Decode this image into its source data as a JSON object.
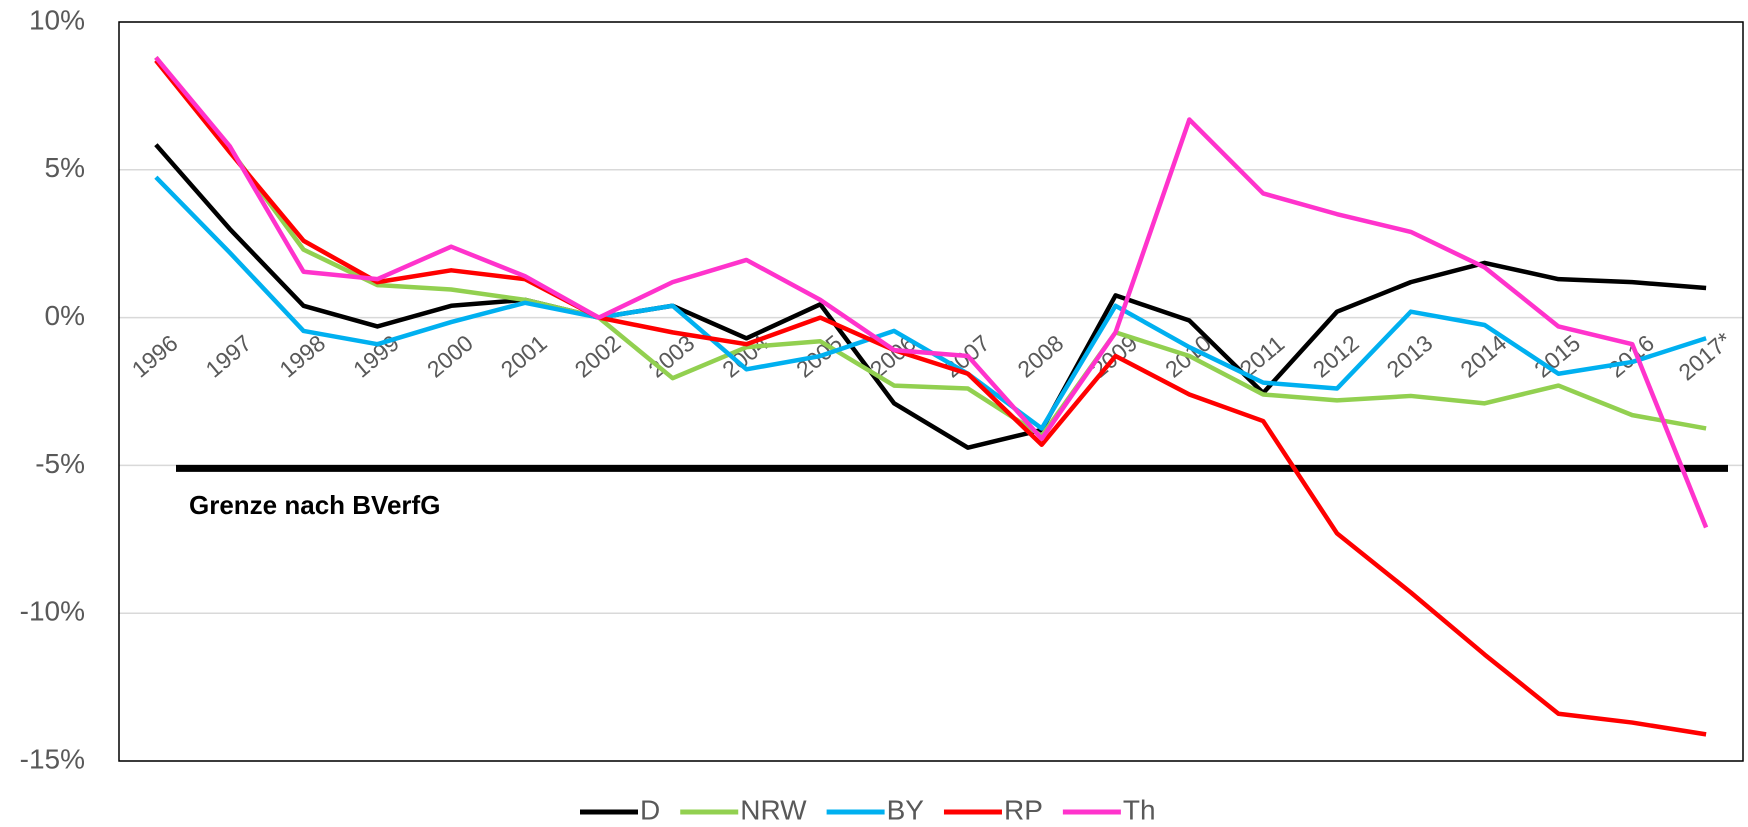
{
  "chart_data": {
    "type": "line",
    "categories": [
      "1996",
      "1997",
      "1998",
      "1999",
      "2000",
      "2001",
      "2002",
      "2003",
      "2004",
      "2005",
      "2006",
      "2007",
      "2008",
      "2009",
      "2010",
      "2011",
      "2012",
      "2013",
      "2014",
      "2015",
      "2016",
      "2017*"
    ],
    "series": [
      {
        "name": "D",
        "color": "#000000",
        "values": [
          5.85,
          3.0,
          0.4,
          -0.3,
          0.4,
          0.6,
          0,
          0.4,
          -0.7,
          0.45,
          -2.9,
          -4.4,
          -3.8,
          0.75,
          -0.1,
          -2.55,
          0.2,
          1.2,
          1.85,
          1.3,
          1.2,
          1.0
        ]
      },
      {
        "name": "NRW",
        "color": "#92d050",
        "values": [
          8.8,
          5.7,
          2.3,
          1.1,
          0.95,
          0.6,
          0,
          -2.05,
          -1.0,
          -0.8,
          -2.3,
          -2.4,
          -4.0,
          -0.5,
          -1.3,
          -2.6,
          -2.8,
          -2.65,
          -2.9,
          -2.3,
          -3.3,
          -3.75
        ]
      },
      {
        "name": "BY",
        "color": "#00b0f0",
        "values": [
          4.75,
          2.2,
          -0.45,
          -0.9,
          -0.15,
          0.5,
          0,
          0.4,
          -1.75,
          -1.3,
          -0.45,
          -1.9,
          -3.75,
          0.4,
          -1.0,
          -2.2,
          -2.4,
          0.2,
          -0.25,
          -1.9,
          -1.5,
          -0.7
        ]
      },
      {
        "name": "RP",
        "color": "#ff0000",
        "values": [
          8.7,
          5.6,
          2.6,
          1.2,
          1.6,
          1.3,
          0,
          -0.5,
          -0.9,
          0,
          -1.1,
          -1.9,
          -4.3,
          -1.3,
          -2.6,
          -3.5,
          -7.3,
          -9.3,
          -11.4,
          -13.4,
          -13.7,
          -14.1
        ]
      },
      {
        "name": "Th",
        "color": "#ff33cc",
        "values": [
          8.8,
          5.8,
          1.55,
          1.3,
          2.4,
          1.4,
          0,
          1.2,
          1.95,
          0.6,
          -1.1,
          -1.3,
          -4.1,
          -0.5,
          6.7,
          4.2,
          3.5,
          2.9,
          1.7,
          -0.3,
          -0.9,
          -7.1
        ]
      }
    ],
    "ylim": [
      -15,
      10
    ],
    "yticks": [
      {
        "value": -15,
        "label": "-15%"
      },
      {
        "value": -10,
        "label": "-10%"
      },
      {
        "value": -5,
        "label": "-5%"
      },
      {
        "value": 0,
        "label": "0%"
      },
      {
        "value": 5,
        "label": "5%"
      },
      {
        "value": 10,
        "label": "10%"
      }
    ],
    "grid": true,
    "legend": "bottom",
    "reference_line": {
      "value": -5.1,
      "label": "Grenze nach BVerfG",
      "color": "#000000"
    }
  }
}
